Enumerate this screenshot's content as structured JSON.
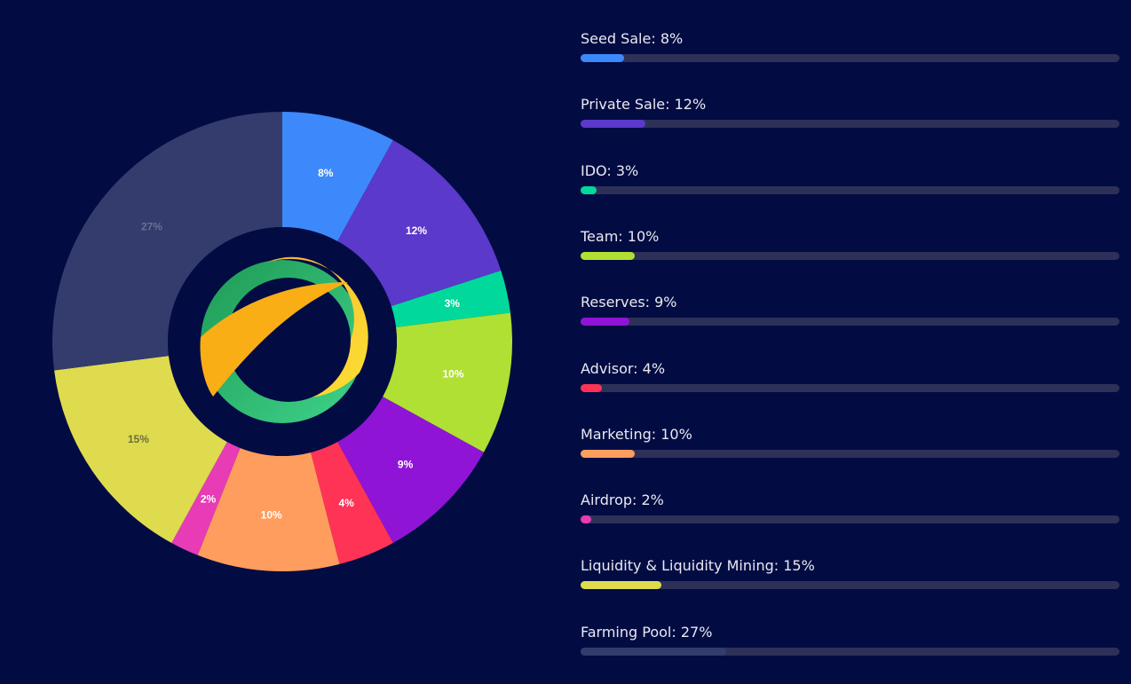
{
  "chart_data": {
    "type": "pie",
    "donut": true,
    "start": "top",
    "direction": "clockwise",
    "series": [
      {
        "name": "Seed Sale",
        "value": 8,
        "label": "8%",
        "color": "#3d89fb",
        "label_color": "#ffffff"
      },
      {
        "name": "Private Sale",
        "value": 12,
        "label": "12%",
        "color": "#5a39cb",
        "label_color": "#ffffff"
      },
      {
        "name": "IDO",
        "value": 3,
        "label": "3%",
        "color": "#00d99b",
        "label_color": "#ffffff"
      },
      {
        "name": "Team",
        "value": 10,
        "label": "10%",
        "color": "#afe033",
        "label_color": "#ffffff"
      },
      {
        "name": "Reserves",
        "value": 9,
        "label": "9%",
        "color": "#9014d6",
        "label_color": "#ffffff"
      },
      {
        "name": "Advisor",
        "value": 4,
        "label": "4%",
        "color": "#ff3356",
        "label_color": "#ffffff"
      },
      {
        "name": "Marketing",
        "value": 10,
        "label": "10%",
        "color": "#ff9d5e",
        "label_color": "#ffffff"
      },
      {
        "name": "Airdrop",
        "value": 2,
        "label": "2%",
        "color": "#e83bb6",
        "label_color": "#ffffff"
      },
      {
        "name": "Liquidity & Liquidity Mining",
        "value": 15,
        "label": "15%",
        "color": "#dedb4e",
        "label_color": "#6f6c3a"
      },
      {
        "name": "Farming Pool",
        "value": 27,
        "label": "27%",
        "color": "#343c6d",
        "label_color": "#6a6f8e"
      }
    ]
  },
  "legend": [
    {
      "text": "Seed Sale: 8%",
      "percent": 8
    },
    {
      "text": "Private Sale: 12%",
      "percent": 12
    },
    {
      "text": "IDO: 3%",
      "percent": 3
    },
    {
      "text": "Team: 10%",
      "percent": 10
    },
    {
      "text": "Reserves: 9%",
      "percent": 9
    },
    {
      "text": "Advisor: 4%",
      "percent": 4
    },
    {
      "text": "Marketing: 10%",
      "percent": 10
    },
    {
      "text": "Airdrop: 2%",
      "percent": 2
    },
    {
      "text": "Liquidity & Liquidity Mining: 15%",
      "percent": 15
    },
    {
      "text": "Farming Pool: 27%",
      "percent": 27
    }
  ],
  "center_logo": "ring-logo-icon",
  "colors": {
    "background": "#030c42",
    "track": "#2d3158"
  }
}
